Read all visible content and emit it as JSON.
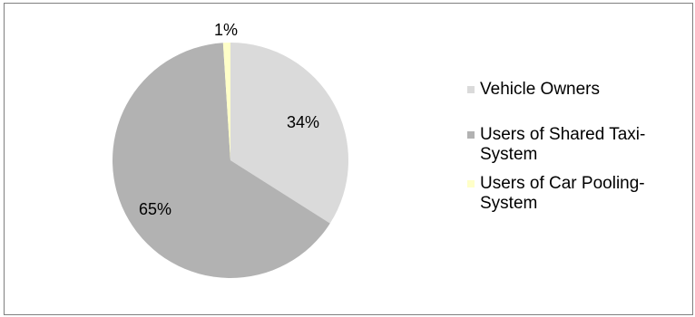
{
  "chart_data": {
    "type": "pie",
    "slices": [
      {
        "label": "Vehicle Owners",
        "value": 34,
        "display": "34%",
        "color": "#dadada"
      },
      {
        "label": "Users of Shared Taxi-System",
        "value": 65,
        "display": "65%",
        "color": "#b2b2b2"
      },
      {
        "label": "Users of Car Pooling-System",
        "value": 1,
        "display": "1%",
        "color": "#ffffc8"
      }
    ],
    "legend": "right"
  },
  "legend": {
    "items": [
      {
        "label": "Vehicle Owners",
        "color": "#dadada"
      },
      {
        "label": "Users of Shared Taxi-System",
        "color": "#b2b2b2"
      },
      {
        "label": "Users of Car Pooling-System",
        "color": "#ffffc8"
      }
    ]
  }
}
